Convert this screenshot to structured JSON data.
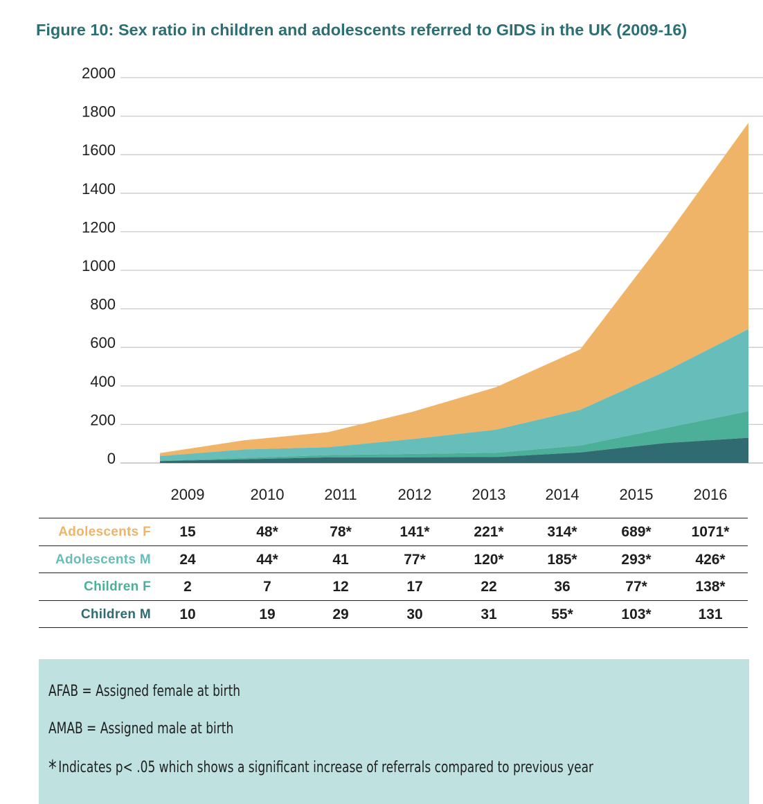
{
  "title": "Figure 10: Sex ratio in children and adolescents referred to GIDS in the UK (2009-16)",
  "colors": {
    "adolescents_f": "#efb468",
    "adolescents_m": "#66bdb9",
    "children_f": "#4caf98",
    "children_m": "#2f6b70",
    "title": "#2d6e73",
    "notes_bg": "#bfe1df"
  },
  "chart_data": {
    "type": "area",
    "stacked": true,
    "title": "Figure 10: Sex ratio in children and adolescents referred to GIDS in the UK (2009-16)",
    "x": [
      "2009",
      "2010",
      "2011",
      "2012",
      "2013",
      "2014",
      "2015",
      "2016"
    ],
    "ylim": [
      0,
      2000
    ],
    "yticks": [
      "2000",
      "1800",
      "1600",
      "1400",
      "1200",
      "1000",
      "800",
      "600",
      "400",
      "200",
      "0"
    ],
    "grid": true,
    "series": [
      {
        "name": "Children M",
        "values": [
          10,
          19,
          29,
          30,
          31,
          55,
          103,
          131
        ]
      },
      {
        "name": "Children F",
        "values": [
          2,
          7,
          12,
          17,
          22,
          36,
          77,
          138
        ]
      },
      {
        "name": "Adolescents M",
        "values": [
          24,
          44,
          41,
          77,
          120,
          185,
          293,
          426
        ]
      },
      {
        "name": "Adolescents F",
        "values": [
          15,
          48,
          78,
          141,
          221,
          314,
          689,
          1071
        ]
      }
    ]
  },
  "table": {
    "rows": [
      {
        "label": "Adolescents F",
        "color": "#efb468",
        "cells": [
          "15",
          "48*",
          "78*",
          "141*",
          "221*",
          "314*",
          "689*",
          "1071*"
        ]
      },
      {
        "label": "Adolescents M",
        "color": "#66bdb9",
        "cells": [
          "24",
          "44*",
          "41",
          "77*",
          "120*",
          "185*",
          "293*",
          "426*"
        ]
      },
      {
        "label": "Children F",
        "color": "#4caf98",
        "cells": [
          "2",
          "7",
          "12",
          "17",
          "22",
          "36",
          "77*",
          "138*"
        ]
      },
      {
        "label": "Children M",
        "color": "#2f6b70",
        "cells": [
          "10",
          "19",
          "29",
          "30",
          "31",
          "55*",
          "103*",
          "131"
        ]
      }
    ]
  },
  "notes": {
    "afab": "AFAB = Assigned female at birth",
    "amab": "AMAB = Assigned male at birth",
    "star": "*",
    "significance": "Indicates p< .05 which shows a significant increase of referrals compared to previous year"
  }
}
